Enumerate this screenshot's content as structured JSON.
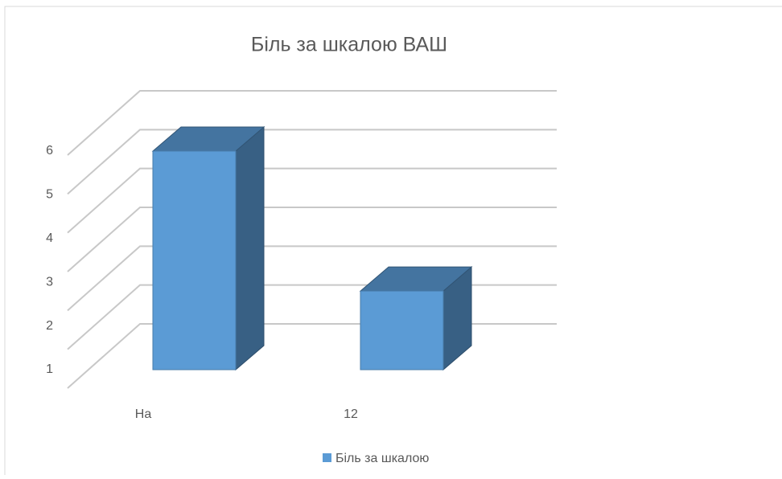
{
  "chart_data": {
    "type": "bar3d",
    "title": "Біль за шкалою ВАШ",
    "categories": [
      "На",
      "12"
    ],
    "series": [
      {
        "name": "Біль за шкалою",
        "color": "#5b9bd5",
        "values": [
          6,
          2.8
        ]
      }
    ],
    "ylim": [
      1,
      7
    ],
    "yticks": [
      1,
      2,
      3,
      4,
      5,
      6
    ],
    "grid": true,
    "legend": "bottom"
  }
}
